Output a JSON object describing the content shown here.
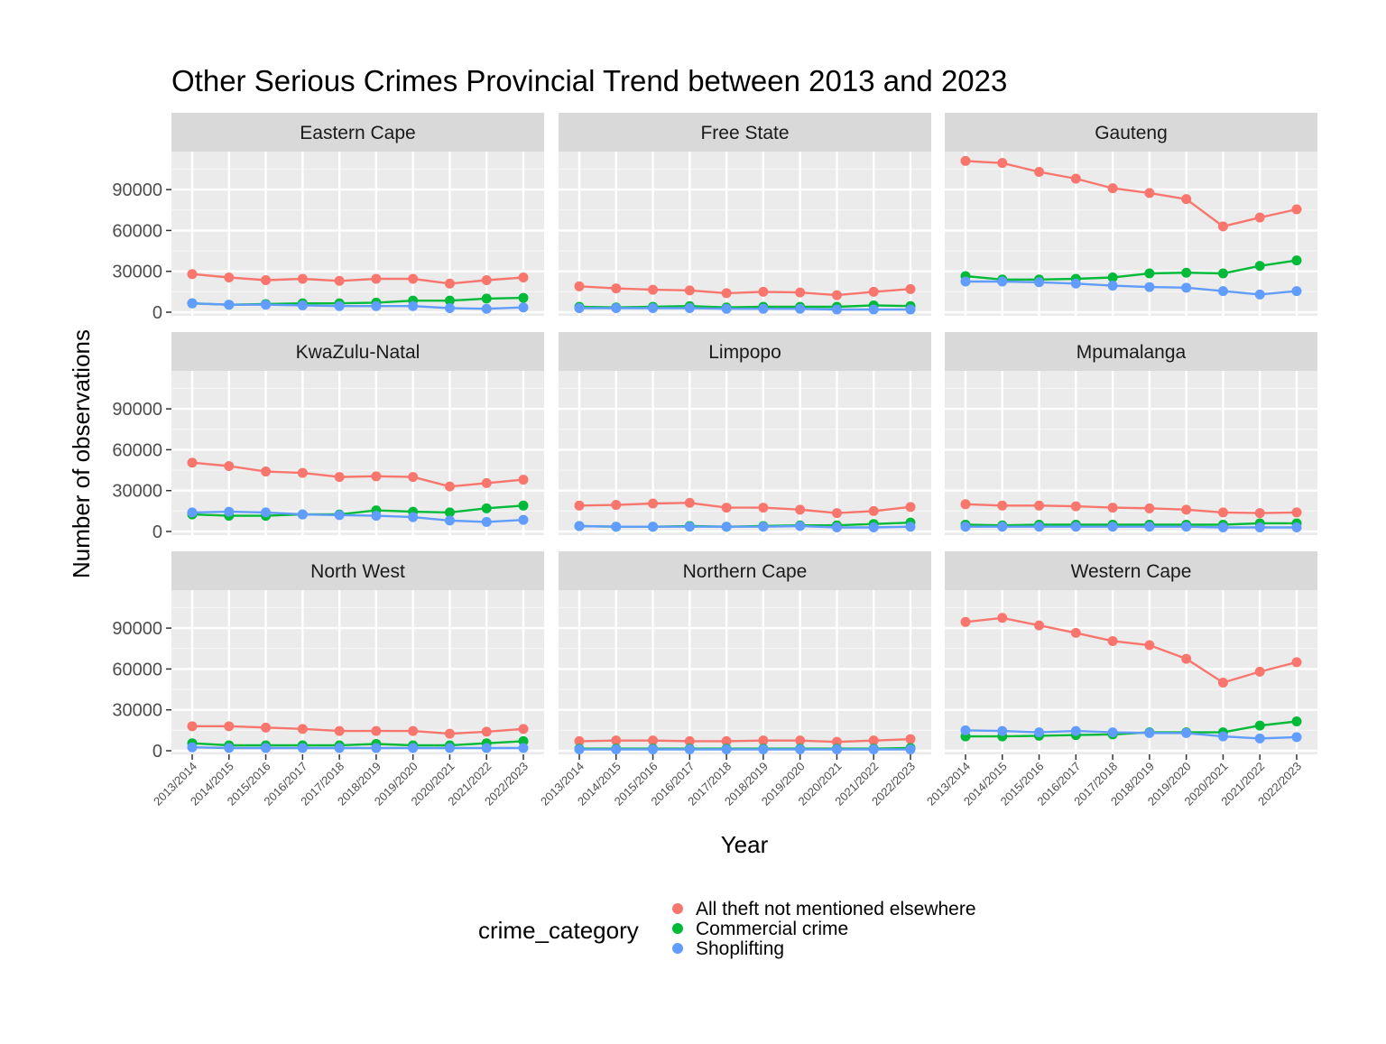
{
  "chart_data": {
    "type": "line",
    "title": "Other Serious Crimes Provincial Trend between 2013 and 2023",
    "xlabel": "Year",
    "ylabel": "Number of observations",
    "ylim": [
      0,
      115000
    ],
    "yticks": [
      0,
      30000,
      60000,
      90000
    ],
    "categories": [
      "2013/2014",
      "2014/2015",
      "2015/2016",
      "2016/2017",
      "2017/2018",
      "2018/2019",
      "2019/2020",
      "2020/2021",
      "2021/2022",
      "2022/2023"
    ],
    "legend": {
      "title": "crime_category",
      "placement": "bottom",
      "entries": [
        "All theft not mentioned elsewhere",
        "Commercial crime",
        "Shoplifting"
      ]
    },
    "colors": {
      "All theft not mentioned elsewhere": "#F8766D",
      "Commercial crime": "#00BA38",
      "Shoplifting": "#619CFF"
    },
    "facets": [
      {
        "name": "Eastern Cape",
        "series": [
          {
            "name": "All theft not mentioned elsewhere",
            "values": [
              28000,
              25500,
              23500,
              24500,
              23000,
              24500,
              24500,
              21000,
              23500,
              25500
            ]
          },
          {
            "name": "Commercial crime",
            "values": [
              6500,
              5500,
              6000,
              6500,
              6500,
              7000,
              8500,
              8500,
              10000,
              10500
            ]
          },
          {
            "name": "Shoplifting",
            "values": [
              6500,
              5500,
              5500,
              5000,
              4500,
              4500,
              4500,
              3000,
              2500,
              3500
            ]
          }
        ]
      },
      {
        "name": "Free State",
        "series": [
          {
            "name": "All theft not mentioned elsewhere",
            "values": [
              19000,
              17500,
              16500,
              16000,
              14000,
              15000,
              14500,
              12500,
              15000,
              17000
            ]
          },
          {
            "name": "Commercial crime",
            "values": [
              4000,
              3500,
              4000,
              4500,
              3500,
              4000,
              4000,
              4000,
              5000,
              4500
            ]
          },
          {
            "name": "Shoplifting",
            "values": [
              3000,
              3000,
              3000,
              3000,
              2500,
              2500,
              2500,
              2000,
              2000,
              2000
            ]
          }
        ]
      },
      {
        "name": "Gauteng",
        "series": [
          {
            "name": "All theft not mentioned elsewhere",
            "values": [
              111000,
              109500,
              103000,
              98000,
              91000,
              87500,
              83000,
              63000,
              69500,
              75500
            ]
          },
          {
            "name": "Commercial crime",
            "values": [
              26500,
              24000,
              24000,
              24500,
              25500,
              28500,
              29000,
              28500,
              34000,
              38000
            ]
          },
          {
            "name": "Shoplifting",
            "values": [
              22500,
              22500,
              22000,
              21000,
              19500,
              18500,
              18000,
              15500,
              13000,
              15500
            ]
          }
        ]
      },
      {
        "name": "KwaZulu-Natal",
        "series": [
          {
            "name": "All theft not mentioned elsewhere",
            "values": [
              50500,
              48000,
              44000,
              43000,
              40000,
              40500,
              40000,
              33000,
              35500,
              38000
            ]
          },
          {
            "name": "Commercial crime",
            "values": [
              12500,
              11500,
              11500,
              12500,
              12500,
              15500,
              14500,
              14000,
              17000,
              19000
            ]
          },
          {
            "name": "Shoplifting",
            "values": [
              14000,
              14500,
              14000,
              12500,
              12000,
              11500,
              10500,
              8000,
              7000,
              8500
            ]
          }
        ]
      },
      {
        "name": "Limpopo",
        "series": [
          {
            "name": "All theft not mentioned elsewhere",
            "values": [
              19000,
              19500,
              20500,
              21000,
              17500,
              17500,
              16000,
              13500,
              15000,
              18000
            ]
          },
          {
            "name": "Commercial crime",
            "values": [
              4000,
              3500,
              3500,
              4000,
              3500,
              4000,
              4500,
              4500,
              5500,
              6500
            ]
          },
          {
            "name": "Shoplifting",
            "values": [
              4000,
              3500,
              3500,
              3500,
              3500,
              3500,
              4000,
              3000,
              3000,
              3500
            ]
          }
        ]
      },
      {
        "name": "Mpumalanga",
        "series": [
          {
            "name": "All theft not mentioned elsewhere",
            "values": [
              20000,
              19000,
              19000,
              18500,
              17500,
              17000,
              16000,
              14000,
              13500,
              14000
            ]
          },
          {
            "name": "Commercial crime",
            "values": [
              5000,
              4500,
              5000,
              5000,
              5000,
              5000,
              5000,
              5000,
              6000,
              6000
            ]
          },
          {
            "name": "Shoplifting",
            "values": [
              3500,
              3500,
              3500,
              3500,
              3500,
              3500,
              3500,
              3000,
              3000,
              3000
            ]
          }
        ]
      },
      {
        "name": "North West",
        "series": [
          {
            "name": "All theft not mentioned elsewhere",
            "values": [
              18000,
              18000,
              17000,
              16000,
              14500,
              14500,
              14500,
              12500,
              14000,
              16000
            ]
          },
          {
            "name": "Commercial crime",
            "values": [
              5500,
              4000,
              4000,
              4000,
              4000,
              5000,
              4000,
              4000,
              5500,
              7000
            ]
          },
          {
            "name": "Shoplifting",
            "values": [
              2500,
              2000,
              2000,
              2000,
              2000,
              2000,
              2000,
              2000,
              2000,
              2000
            ]
          }
        ]
      },
      {
        "name": "Northern Cape",
        "series": [
          {
            "name": "All theft not mentioned elsewhere",
            "values": [
              7000,
              7500,
              7500,
              7000,
              7000,
              7500,
              7500,
              6500,
              7500,
              8500
            ]
          },
          {
            "name": "Commercial crime",
            "values": [
              1500,
              1500,
              1500,
              1500,
              1500,
              1500,
              1500,
              1500,
              1500,
              2000
            ]
          },
          {
            "name": "Shoplifting",
            "values": [
              1000,
              1000,
              1000,
              1000,
              1000,
              1000,
              1000,
              1000,
              1000,
              1000
            ]
          }
        ]
      },
      {
        "name": "Western Cape",
        "series": [
          {
            "name": "All theft not mentioned elsewhere",
            "values": [
              94500,
              97500,
              92000,
              86500,
              80500,
              77500,
              67500,
              50000,
              58000,
              65000
            ]
          },
          {
            "name": "Commercial crime",
            "values": [
              10500,
              10500,
              11000,
              11500,
              12000,
              13500,
              13500,
              13500,
              18500,
              21500
            ]
          },
          {
            "name": "Shoplifting",
            "values": [
              15000,
              14500,
              13500,
              14500,
              13500,
              13000,
              13000,
              10500,
              9000,
              10000
            ]
          }
        ]
      }
    ]
  }
}
